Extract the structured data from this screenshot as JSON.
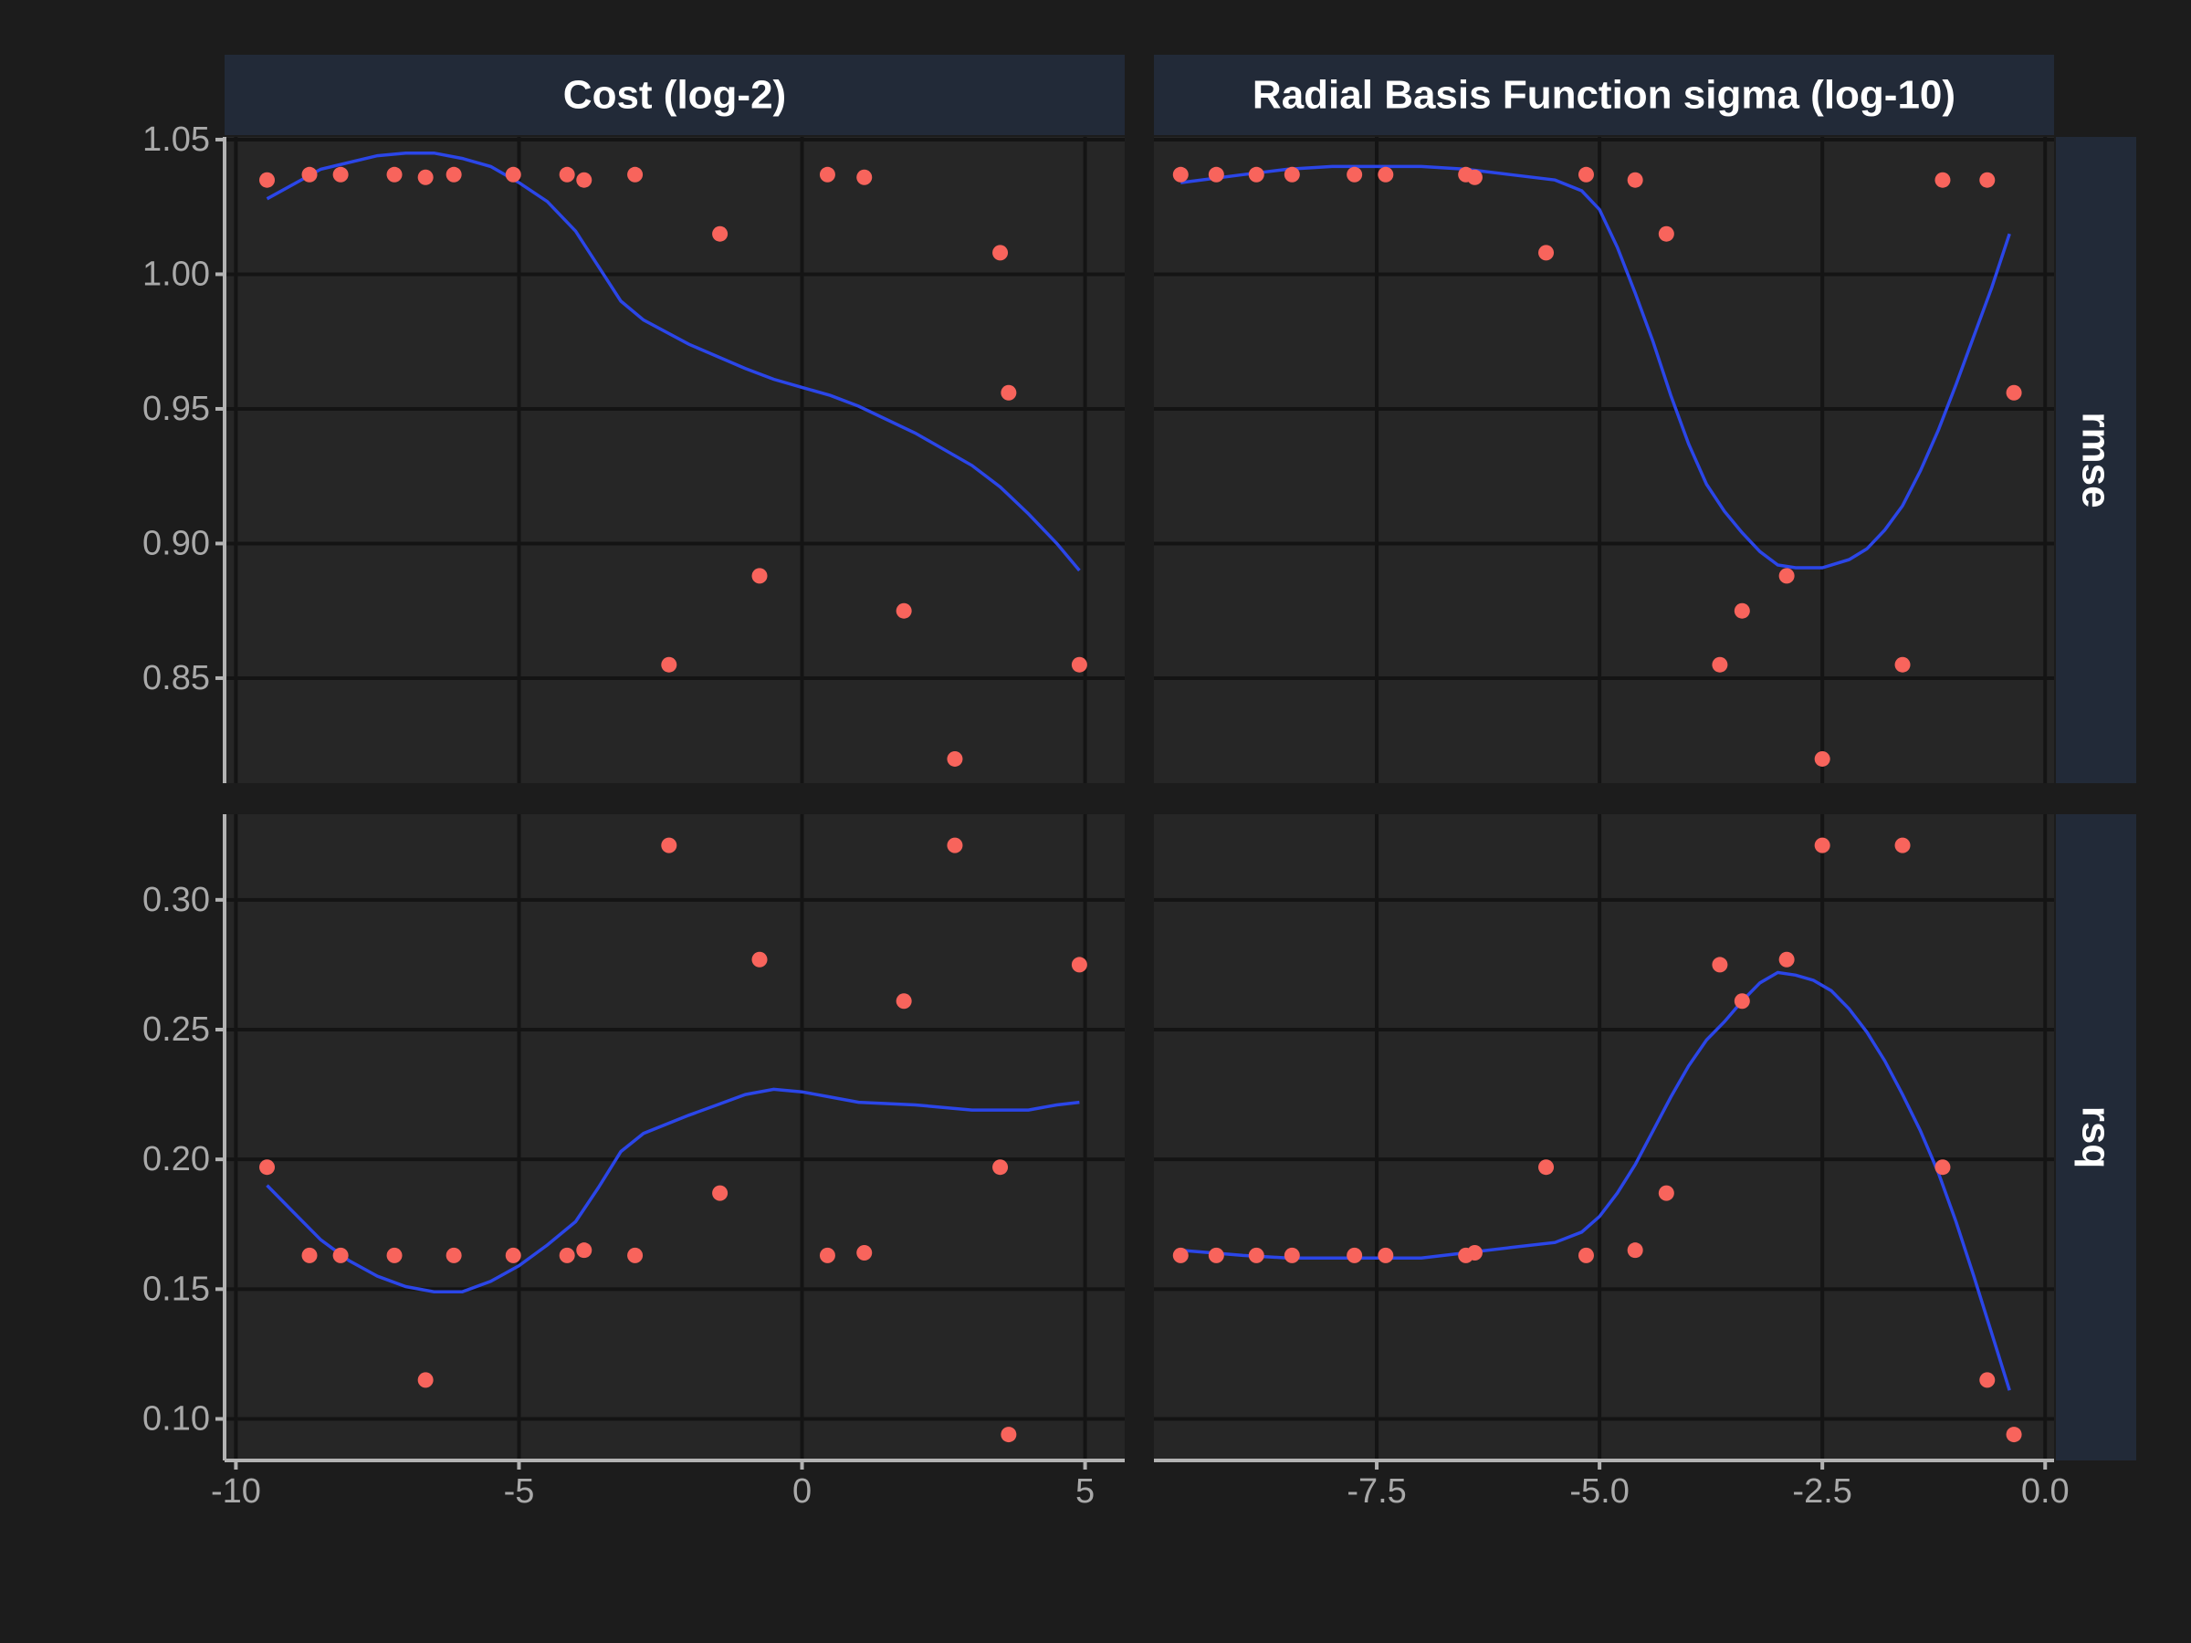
{
  "chart_data": {
    "type": "scatter",
    "facet_columns": [
      "Cost (log-2)",
      "Radial Basis Function sigma (log-10)"
    ],
    "facet_rows": [
      "rmse",
      "rsq"
    ],
    "x_axes": [
      {
        "ticks": [
          -10,
          -5,
          0,
          5
        ],
        "tick_labels": [
          "-10",
          "-5",
          "0",
          "5"
        ],
        "xlim": [
          -10.2,
          5.7
        ]
      },
      {
        "ticks": [
          -7.5,
          -5.0,
          -2.5,
          0.0
        ],
        "tick_labels": [
          "-7.5",
          "-5.0",
          "-2.5",
          "0.0"
        ],
        "xlim": [
          -10.0,
          0.1
        ]
      }
    ],
    "y_axes": [
      {
        "ticks": [
          0.85,
          0.9,
          0.95,
          1.0,
          1.05
        ],
        "tick_labels": [
          "0.85",
          "0.90",
          "0.95",
          "1.00",
          "1.05"
        ],
        "ylim": [
          0.811,
          1.051
        ]
      },
      {
        "ticks": [
          0.1,
          0.15,
          0.2,
          0.25,
          0.3
        ],
        "tick_labels": [
          "0.10",
          "0.15",
          "0.20",
          "0.25",
          "0.30"
        ],
        "ylim": [
          0.084,
          0.333
        ]
      }
    ],
    "point_color": "#f8645c",
    "smooth_color": "#2b46e8",
    "background": "#1c1c1c",
    "panel_background": "#262626",
    "strip_background": "#222a38",
    "grid": true,
    "panels": [
      {
        "row": 0,
        "col": 0,
        "points": [
          [
            -9.45,
            1.035
          ],
          [
            -8.7,
            1.037
          ],
          [
            -8.15,
            1.037
          ],
          [
            -7.2,
            1.037
          ],
          [
            -6.65,
            1.036
          ],
          [
            -6.15,
            1.037
          ],
          [
            -5.1,
            1.037
          ],
          [
            -4.15,
            1.037
          ],
          [
            -3.85,
            1.035
          ],
          [
            -2.95,
            1.037
          ],
          [
            -2.35,
            0.855
          ],
          [
            -1.45,
            1.015
          ],
          [
            -0.75,
            0.888
          ],
          [
            0.45,
            1.037
          ],
          [
            1.1,
            1.036
          ],
          [
            1.8,
            0.875
          ],
          [
            2.7,
            0.82
          ],
          [
            3.5,
            1.008
          ],
          [
            3.65,
            0.956
          ],
          [
            4.9,
            0.855
          ]
        ],
        "smooth": [
          [
            -9.45,
            1.028
          ],
          [
            -8.5,
            1.039
          ],
          [
            -7.5,
            1.044
          ],
          [
            -7.0,
            1.045
          ],
          [
            -6.5,
            1.045
          ],
          [
            -6.0,
            1.043
          ],
          [
            -5.5,
            1.04
          ],
          [
            -5.0,
            1.034
          ],
          [
            -4.5,
            1.027
          ],
          [
            -4.0,
            1.016
          ],
          [
            -3.6,
            1.003
          ],
          [
            -3.2,
            0.99
          ],
          [
            -2.8,
            0.983
          ],
          [
            -2.0,
            0.974
          ],
          [
            -1.0,
            0.965
          ],
          [
            -0.5,
            0.961
          ],
          [
            0.0,
            0.958
          ],
          [
            0.5,
            0.955
          ],
          [
            1.0,
            0.951
          ],
          [
            2.0,
            0.941
          ],
          [
            3.0,
            0.929
          ],
          [
            3.5,
            0.921
          ],
          [
            4.0,
            0.911
          ],
          [
            4.5,
            0.9
          ],
          [
            4.9,
            0.89
          ]
        ]
      },
      {
        "row": 0,
        "col": 1,
        "points": [
          [
            -9.7,
            1.037
          ],
          [
            -9.3,
            1.037
          ],
          [
            -8.85,
            1.037
          ],
          [
            -8.45,
            1.037
          ],
          [
            -7.75,
            1.037
          ],
          [
            -7.4,
            1.037
          ],
          [
            -6.5,
            1.037
          ],
          [
            -6.4,
            1.036
          ],
          [
            -5.6,
            1.008
          ],
          [
            -5.15,
            1.037
          ],
          [
            -4.6,
            1.035
          ],
          [
            -4.25,
            1.015
          ],
          [
            -3.65,
            0.855
          ],
          [
            -3.4,
            0.875
          ],
          [
            -2.9,
            0.888
          ],
          [
            -2.5,
            0.82
          ],
          [
            -1.6,
            0.855
          ],
          [
            -1.15,
            1.035
          ],
          [
            -0.65,
            1.035
          ],
          [
            -0.35,
            0.956
          ]
        ],
        "smooth": [
          [
            -9.7,
            1.034
          ],
          [
            -9.0,
            1.037
          ],
          [
            -8.5,
            1.039
          ],
          [
            -8.0,
            1.04
          ],
          [
            -7.5,
            1.04
          ],
          [
            -7.0,
            1.04
          ],
          [
            -6.5,
            1.039
          ],
          [
            -6.0,
            1.037
          ],
          [
            -5.5,
            1.035
          ],
          [
            -5.2,
            1.031
          ],
          [
            -5.0,
            1.024
          ],
          [
            -4.8,
            1.01
          ],
          [
            -4.6,
            0.993
          ],
          [
            -4.4,
            0.975
          ],
          [
            -4.2,
            0.955
          ],
          [
            -4.0,
            0.937
          ],
          [
            -3.8,
            0.922
          ],
          [
            -3.6,
            0.912
          ],
          [
            -3.4,
            0.904
          ],
          [
            -3.2,
            0.897
          ],
          [
            -3.0,
            0.892
          ],
          [
            -2.8,
            0.891
          ],
          [
            -2.5,
            0.891
          ],
          [
            -2.2,
            0.894
          ],
          [
            -2.0,
            0.898
          ],
          [
            -1.8,
            0.905
          ],
          [
            -1.6,
            0.914
          ],
          [
            -1.4,
            0.927
          ],
          [
            -1.2,
            0.942
          ],
          [
            -1.0,
            0.959
          ],
          [
            -0.8,
            0.977
          ],
          [
            -0.6,
            0.995
          ],
          [
            -0.4,
            1.015
          ]
        ]
      },
      {
        "row": 1,
        "col": 0,
        "points": [
          [
            -9.45,
            0.197
          ],
          [
            -8.7,
            0.163
          ],
          [
            -8.15,
            0.163
          ],
          [
            -7.2,
            0.163
          ],
          [
            -6.65,
            0.115
          ],
          [
            -6.15,
            0.163
          ],
          [
            -5.1,
            0.163
          ],
          [
            -4.15,
            0.163
          ],
          [
            -3.85,
            0.165
          ],
          [
            -2.95,
            0.163
          ],
          [
            -2.35,
            0.321
          ],
          [
            -1.45,
            0.187
          ],
          [
            -0.75,
            0.277
          ],
          [
            0.45,
            0.163
          ],
          [
            1.1,
            0.164
          ],
          [
            1.8,
            0.261
          ],
          [
            2.7,
            0.321
          ],
          [
            3.5,
            0.197
          ],
          [
            3.65,
            0.094
          ],
          [
            4.9,
            0.275
          ]
        ],
        "smooth": [
          [
            -9.45,
            0.19
          ],
          [
            -9.0,
            0.18
          ],
          [
            -8.5,
            0.169
          ],
          [
            -8.0,
            0.161
          ],
          [
            -7.5,
            0.155
          ],
          [
            -7.0,
            0.151
          ],
          [
            -6.5,
            0.149
          ],
          [
            -6.0,
            0.149
          ],
          [
            -5.5,
            0.153
          ],
          [
            -5.0,
            0.159
          ],
          [
            -4.5,
            0.167
          ],
          [
            -4.0,
            0.176
          ],
          [
            -3.6,
            0.189
          ],
          [
            -3.2,
            0.203
          ],
          [
            -2.8,
            0.21
          ],
          [
            -2.0,
            0.217
          ],
          [
            -1.5,
            0.221
          ],
          [
            -1.0,
            0.225
          ],
          [
            -0.5,
            0.227
          ],
          [
            0.0,
            0.226
          ],
          [
            0.5,
            0.224
          ],
          [
            1.0,
            0.222
          ],
          [
            2.0,
            0.221
          ],
          [
            3.0,
            0.219
          ],
          [
            3.5,
            0.219
          ],
          [
            4.0,
            0.219
          ],
          [
            4.5,
            0.221
          ],
          [
            4.9,
            0.222
          ]
        ]
      },
      {
        "row": 1,
        "col": 1,
        "points": [
          [
            -9.7,
            0.163
          ],
          [
            -9.3,
            0.163
          ],
          [
            -8.85,
            0.163
          ],
          [
            -8.45,
            0.163
          ],
          [
            -7.75,
            0.163
          ],
          [
            -7.4,
            0.163
          ],
          [
            -6.5,
            0.163
          ],
          [
            -6.4,
            0.164
          ],
          [
            -5.6,
            0.197
          ],
          [
            -5.15,
            0.163
          ],
          [
            -4.6,
            0.165
          ],
          [
            -4.25,
            0.187
          ],
          [
            -3.65,
            0.275
          ],
          [
            -3.4,
            0.261
          ],
          [
            -2.9,
            0.277
          ],
          [
            -2.5,
            0.321
          ],
          [
            -1.6,
            0.321
          ],
          [
            -1.15,
            0.197
          ],
          [
            -0.65,
            0.115
          ],
          [
            -0.35,
            0.094
          ]
        ],
        "smooth": [
          [
            -9.7,
            0.165
          ],
          [
            -9.0,
            0.163
          ],
          [
            -8.5,
            0.162
          ],
          [
            -8.0,
            0.162
          ],
          [
            -7.5,
            0.162
          ],
          [
            -7.0,
            0.162
          ],
          [
            -6.5,
            0.164
          ],
          [
            -6.0,
            0.166
          ],
          [
            -5.5,
            0.168
          ],
          [
            -5.2,
            0.172
          ],
          [
            -5.0,
            0.178
          ],
          [
            -4.8,
            0.187
          ],
          [
            -4.6,
            0.198
          ],
          [
            -4.4,
            0.211
          ],
          [
            -4.2,
            0.224
          ],
          [
            -4.0,
            0.236
          ],
          [
            -3.8,
            0.246
          ],
          [
            -3.6,
            0.253
          ],
          [
            -3.4,
            0.261
          ],
          [
            -3.2,
            0.268
          ],
          [
            -3.0,
            0.272
          ],
          [
            -2.8,
            0.271
          ],
          [
            -2.6,
            0.269
          ],
          [
            -2.4,
            0.265
          ],
          [
            -2.2,
            0.258
          ],
          [
            -2.0,
            0.249
          ],
          [
            -1.8,
            0.238
          ],
          [
            -1.6,
            0.225
          ],
          [
            -1.4,
            0.211
          ],
          [
            -1.2,
            0.195
          ],
          [
            -1.0,
            0.176
          ],
          [
            -0.8,
            0.155
          ],
          [
            -0.6,
            0.133
          ],
          [
            -0.4,
            0.111
          ]
        ]
      }
    ]
  }
}
